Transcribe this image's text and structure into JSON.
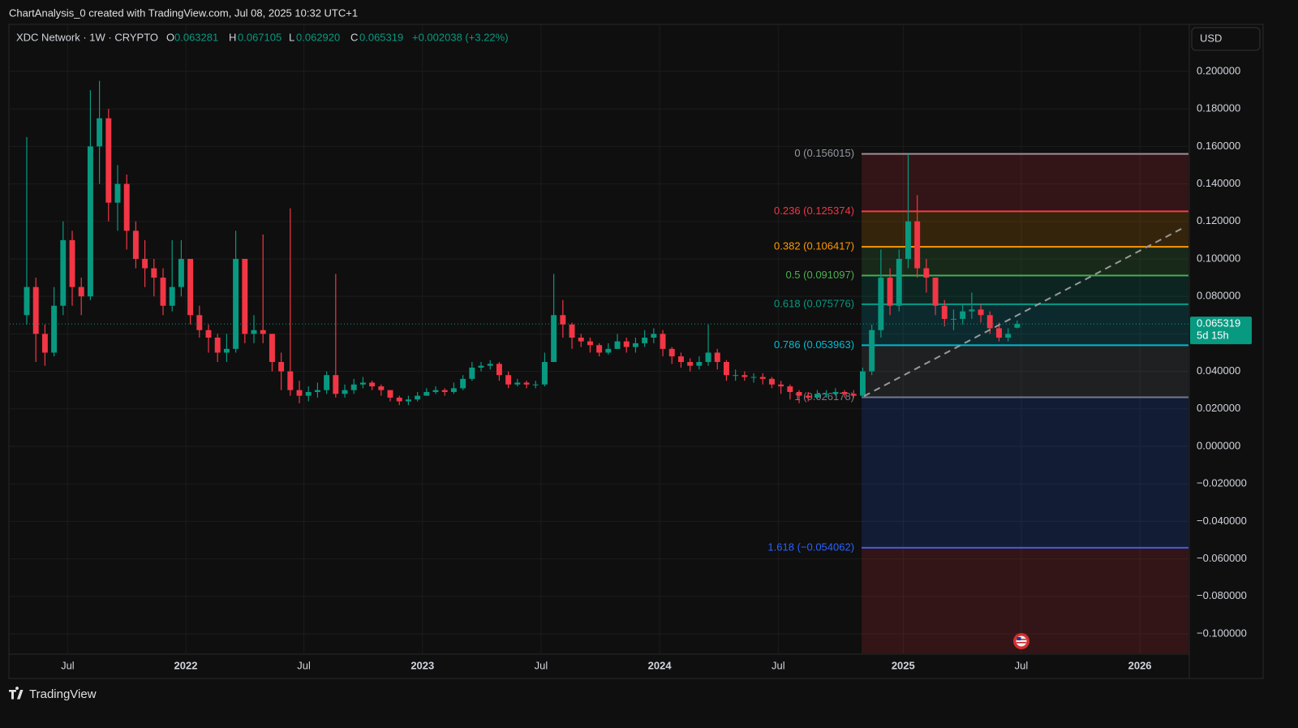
{
  "header": {
    "caption": "ChartAnalysis_0 created with TradingView.com, Jul 08, 2025 10:32 UTC+1",
    "brand": "TradingView",
    "currency": "USD"
  },
  "legend": {
    "symbol": "XDC Network · 1W · CRYPTO",
    "open_label": "O",
    "open": "0.063281",
    "high_label": "H",
    "high": "0.067105",
    "low_label": "L",
    "low": "0.062920",
    "close_label": "C",
    "close": "0.065319",
    "change": "+0.002038 (+3.22%)"
  },
  "chart_data": {
    "type": "candlestick",
    "up_color": "#089981",
    "down_color": "#f23645",
    "x": [
      -35,
      -33,
      -31,
      -29,
      -27,
      -25,
      -23,
      -21,
      -19,
      -17,
      -15,
      -13,
      -11,
      -9,
      -7,
      -5,
      -3,
      -1,
      1,
      3,
      5,
      7,
      9,
      11,
      13,
      15,
      17,
      19,
      21,
      23,
      25,
      27,
      29,
      31,
      33,
      35,
      37,
      39,
      41,
      43,
      45,
      47,
      49,
      51,
      53,
      55,
      57,
      59,
      61,
      63,
      65,
      67,
      69,
      71,
      73,
      75,
      77,
      79,
      81,
      83,
      85,
      87,
      89,
      91,
      93,
      95,
      97,
      99,
      101,
      103,
      105,
      107,
      109,
      111,
      113,
      115,
      117,
      119,
      121,
      123,
      125,
      127,
      129,
      131,
      133,
      135,
      137,
      139,
      141,
      143,
      145,
      147,
      149,
      151,
      153,
      155,
      157,
      159,
      161,
      163,
      165,
      167,
      169,
      171,
      173,
      175,
      177,
      179,
      181,
      183
    ],
    "open": [
      0.07,
      0.085,
      0.06,
      0.05,
      0.075,
      0.11,
      0.085,
      0.08,
      0.16,
      0.175,
      0.13,
      0.14,
      0.115,
      0.1,
      0.095,
      0.09,
      0.075,
      0.085,
      0.1,
      0.07,
      0.062,
      0.058,
      0.05,
      0.052,
      0.1,
      0.06,
      0.062,
      0.06,
      0.045,
      0.04,
      0.03,
      0.027,
      0.029,
      0.03,
      0.038,
      0.028,
      0.03,
      0.033,
      0.034,
      0.032,
      0.03,
      0.026,
      0.024,
      0.025,
      0.027,
      0.029,
      0.03,
      0.029,
      0.031,
      0.036,
      0.042,
      0.043,
      0.044,
      0.038,
      0.033,
      0.034,
      0.033,
      0.033,
      0.045,
      0.07,
      0.065,
      0.058,
      0.056,
      0.054,
      0.05,
      0.052,
      0.056,
      0.053,
      0.055,
      0.058,
      0.06,
      0.052,
      0.048,
      0.045,
      0.043,
      0.045,
      0.05,
      0.045,
      0.038,
      0.038,
      0.037,
      0.037,
      0.036,
      0.033,
      0.032,
      0.029,
      0.027,
      0.026,
      0.028,
      0.028,
      0.029,
      0.028,
      0.027,
      0.04,
      0.062,
      0.09,
      0.075,
      0.1,
      0.12,
      0.095,
      0.09,
      0.075,
      0.068,
      0.068,
      0.072,
      0.073,
      0.07,
      0.063,
      0.058,
      0.063281
    ],
    "high": [
      0.165,
      0.09,
      0.065,
      0.085,
      0.12,
      0.115,
      0.09,
      0.19,
      0.195,
      0.18,
      0.15,
      0.145,
      0.12,
      0.11,
      0.1,
      0.095,
      0.11,
      0.11,
      0.1,
      0.075,
      0.065,
      0.06,
      0.06,
      0.115,
      0.1,
      0.07,
      0.113,
      0.06,
      0.05,
      0.127,
      0.035,
      0.032,
      0.034,
      0.04,
      0.092,
      0.033,
      0.036,
      0.037,
      0.035,
      0.033,
      0.03,
      0.027,
      0.027,
      0.029,
      0.031,
      0.032,
      0.031,
      0.034,
      0.038,
      0.045,
      0.045,
      0.046,
      0.045,
      0.04,
      0.036,
      0.035,
      0.035,
      0.05,
      0.092,
      0.078,
      0.066,
      0.06,
      0.058,
      0.055,
      0.055,
      0.06,
      0.058,
      0.058,
      0.062,
      0.063,
      0.062,
      0.053,
      0.05,
      0.047,
      0.048,
      0.065,
      0.052,
      0.046,
      0.041,
      0.04,
      0.039,
      0.039,
      0.037,
      0.035,
      0.033,
      0.03,
      0.029,
      0.03,
      0.03,
      0.031,
      0.03,
      0.03,
      0.042,
      0.065,
      0.105,
      0.095,
      0.105,
      0.156,
      0.134,
      0.1,
      0.09,
      0.078,
      0.073,
      0.076,
      0.082,
      0.076,
      0.072,
      0.066,
      0.063,
      0.067105
    ],
    "low": [
      0.065,
      0.045,
      0.043,
      0.048,
      0.07,
      0.075,
      0.07,
      0.078,
      0.14,
      0.12,
      0.115,
      0.105,
      0.095,
      0.085,
      0.08,
      0.07,
      0.072,
      0.08,
      0.065,
      0.058,
      0.05,
      0.045,
      0.045,
      0.05,
      0.055,
      0.055,
      0.055,
      0.04,
      0.03,
      0.027,
      0.023,
      0.024,
      0.026,
      0.028,
      0.026,
      0.026,
      0.028,
      0.031,
      0.03,
      0.027,
      0.024,
      0.022,
      0.022,
      0.024,
      0.027,
      0.028,
      0.027,
      0.028,
      0.03,
      0.035,
      0.04,
      0.041,
      0.035,
      0.031,
      0.032,
      0.031,
      0.031,
      0.032,
      0.045,
      0.058,
      0.052,
      0.053,
      0.05,
      0.048,
      0.049,
      0.052,
      0.05,
      0.05,
      0.053,
      0.055,
      0.048,
      0.044,
      0.042,
      0.04,
      0.041,
      0.043,
      0.041,
      0.035,
      0.035,
      0.035,
      0.034,
      0.033,
      0.031,
      0.028,
      0.025,
      0.023,
      0.024,
      0.025,
      0.026,
      0.027,
      0.026,
      0.026,
      0.026,
      0.038,
      0.058,
      0.07,
      0.072,
      0.095,
      0.09,
      0.082,
      0.07,
      0.064,
      0.062,
      0.065,
      0.068,
      0.066,
      0.06,
      0.056,
      0.056,
      0.06292
    ],
    "close": [
      0.085,
      0.06,
      0.05,
      0.075,
      0.11,
      0.085,
      0.08,
      0.16,
      0.175,
      0.13,
      0.14,
      0.115,
      0.1,
      0.095,
      0.09,
      0.075,
      0.085,
      0.1,
      0.07,
      0.062,
      0.058,
      0.05,
      0.052,
      0.1,
      0.06,
      0.062,
      0.06,
      0.045,
      0.04,
      0.03,
      0.027,
      0.029,
      0.03,
      0.038,
      0.028,
      0.03,
      0.033,
      0.034,
      0.032,
      0.03,
      0.026,
      0.024,
      0.025,
      0.027,
      0.029,
      0.03,
      0.029,
      0.031,
      0.036,
      0.042,
      0.043,
      0.044,
      0.038,
      0.033,
      0.034,
      0.033,
      0.033,
      0.045,
      0.07,
      0.065,
      0.058,
      0.056,
      0.054,
      0.05,
      0.052,
      0.056,
      0.053,
      0.055,
      0.058,
      0.06,
      0.052,
      0.048,
      0.045,
      0.043,
      0.045,
      0.05,
      0.045,
      0.038,
      0.038,
      0.037,
      0.037,
      0.036,
      0.033,
      0.032,
      0.029,
      0.027,
      0.026,
      0.028,
      0.028,
      0.029,
      0.028,
      0.027,
      0.04,
      0.062,
      0.09,
      0.075,
      0.1,
      0.12,
      0.095,
      0.09,
      0.075,
      0.068,
      0.068,
      0.072,
      0.073,
      0.07,
      0.063,
      0.058,
      0.06,
      0.065319
    ],
    "xlim": [
      -38.75,
      220.7
    ],
    "xticks": [
      {
        "value": -26,
        "label": "Jul"
      },
      {
        "value": 0,
        "label": "2022"
      },
      {
        "value": 26,
        "label": "Jul"
      },
      {
        "value": 52.1,
        "label": "2023"
      },
      {
        "value": 78.2,
        "label": "Jul"
      },
      {
        "value": 104.3,
        "label": "2024"
      },
      {
        "value": 130.4,
        "label": "Jul"
      },
      {
        "value": 157.9,
        "label": "2025"
      },
      {
        "value": 183.9,
        "label": "Jul"
      },
      {
        "value": 210,
        "label": "2026"
      }
    ],
    "ylim": [
      -0.1104,
      0.2251
    ],
    "yticks": [
      {
        "value": 0.2,
        "label": "0.200000"
      },
      {
        "value": 0.18,
        "label": "0.180000"
      },
      {
        "value": 0.16,
        "label": "0.160000"
      },
      {
        "value": 0.14,
        "label": "0.140000"
      },
      {
        "value": 0.12,
        "label": "0.120000"
      },
      {
        "value": 0.1,
        "label": "0.100000"
      },
      {
        "value": 0.08,
        "label": "0.080000"
      },
      {
        "value": 0.06,
        "label": "0.060000"
      },
      {
        "value": 0.04,
        "label": "0.040000"
      },
      {
        "value": 0.02,
        "label": "0.020000"
      },
      {
        "value": 0,
        "label": "0.000000"
      },
      {
        "value": -0.02,
        "label": "−0.020000"
      },
      {
        "value": -0.04,
        "label": "−0.040000"
      },
      {
        "value": -0.06,
        "label": "−0.060000"
      },
      {
        "value": -0.08,
        "label": "−0.080000"
      },
      {
        "value": -0.1,
        "label": "−0.100000"
      }
    ],
    "grid": true,
    "fib": {
      "x_start": 148.75,
      "extension_color": "#f23645",
      "levels": [
        {
          "label": "0 (0.156015)",
          "price": 0.156015,
          "color": "#9598a1"
        },
        {
          "label": "0.236 (0.125374)",
          "price": 0.125374,
          "color": "#f23645"
        },
        {
          "label": "0.382 (0.106417)",
          "price": 0.106417,
          "color": "#ff9800"
        },
        {
          "label": "0.5 (0.091097)",
          "price": 0.091097,
          "color": "#4caf50"
        },
        {
          "label": "0.618 (0.075776)",
          "price": 0.075776,
          "color": "#089981"
        },
        {
          "label": "0.786 (0.053963)",
          "price": 0.053963,
          "color": "#00bcd4"
        },
        {
          "label": "1 (0.026178)",
          "price": 0.026178,
          "color": "#787b86"
        },
        {
          "label": "1.618 (−0.054062)",
          "price": -0.054062,
          "color": "#2962ff"
        }
      ]
    },
    "trendline": {
      "x": [
        149.3,
        219.8
      ],
      "values": [
        0.0268,
        0.1169
      ],
      "color": "#9a9a9a"
    },
    "last_price": {
      "value": 0.065319,
      "countdown": "5d 15h",
      "color": "#089981"
    }
  }
}
